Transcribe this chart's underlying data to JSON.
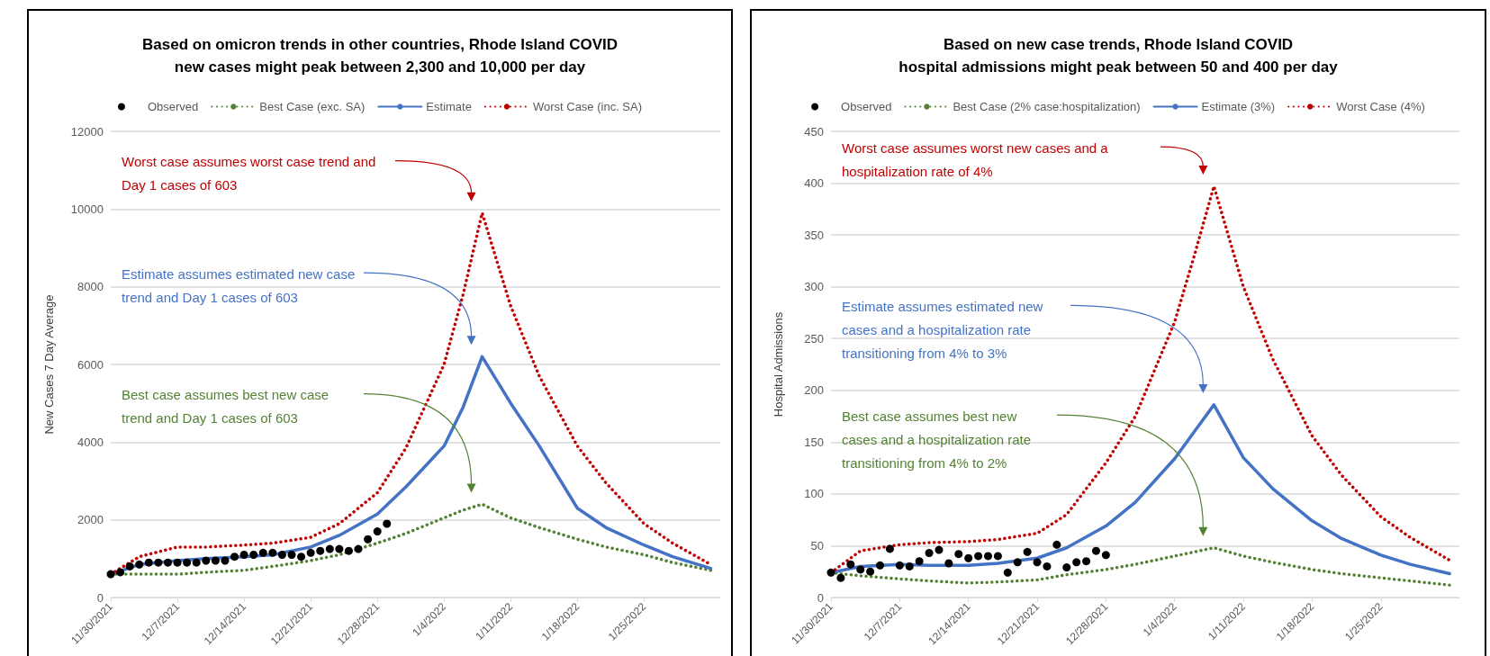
{
  "chart_data": [
    {
      "type": "line",
      "title": "Based on omicron trends in other countries, Rhode Island COVID\nnew cases might peak between 2,300 and 10,000 per day",
      "ylabel": "New Cases 7 Day Average",
      "ylim": [
        0,
        12000
      ],
      "yticks": [
        0,
        2000,
        4000,
        6000,
        8000,
        10000,
        12000
      ],
      "xlim": [
        "2021-11-30",
        "2022-02-02"
      ],
      "xticks": [
        {
          "value": "2021-11-30",
          "label": "11/30/2021"
        },
        {
          "value": "2021-12-07",
          "label": "12/7/2021"
        },
        {
          "value": "2021-12-14",
          "label": "12/14/2021"
        },
        {
          "value": "2021-12-21",
          "label": "12/21/2021"
        },
        {
          "value": "2021-12-28",
          "label": "12/28/2021"
        },
        {
          "value": "2022-01-04",
          "label": "1/4/2022"
        },
        {
          "value": "2022-01-11",
          "label": "1/11/2022"
        },
        {
          "value": "2022-01-18",
          "label": "1/18/2022"
        },
        {
          "value": "2022-01-25",
          "label": "1/25/2022"
        }
      ],
      "grid": "y",
      "legend": "top",
      "series": [
        {
          "name": "Observed",
          "type": "scatter",
          "marker": "circle",
          "color": "#000000",
          "x": [
            "2021-11-30",
            "2021-12-01",
            "2021-12-02",
            "2021-12-03",
            "2021-12-04",
            "2021-12-05",
            "2021-12-06",
            "2021-12-07",
            "2021-12-08",
            "2021-12-09",
            "2021-12-10",
            "2021-12-11",
            "2021-12-12",
            "2021-12-13",
            "2021-12-14",
            "2021-12-15",
            "2021-12-16",
            "2021-12-17",
            "2021-12-18",
            "2021-12-19",
            "2021-12-20",
            "2021-12-21",
            "2021-12-22",
            "2021-12-23",
            "2021-12-24",
            "2021-12-25",
            "2021-12-26",
            "2021-12-27",
            "2021-12-28",
            "2021-12-29"
          ],
          "values": [
            600,
            650,
            800,
            850,
            900,
            900,
            900,
            900,
            900,
            900,
            950,
            950,
            950,
            1050,
            1100,
            1100,
            1150,
            1150,
            1100,
            1100,
            1050,
            1150,
            1200,
            1250,
            1250,
            1200,
            1250,
            1500,
            1700,
            1900
          ]
        },
        {
          "name": "Best Case (exc. SA)",
          "type": "line",
          "marker": "none",
          "line_style": "dotted",
          "color": "#548235",
          "x": [
            "2021-11-30",
            "2021-12-03",
            "2021-12-07",
            "2021-12-10",
            "2021-12-14",
            "2021-12-17",
            "2021-12-21",
            "2021-12-24",
            "2021-12-28",
            "2021-12-31",
            "2022-01-04",
            "2022-01-06",
            "2022-01-08",
            "2022-01-11",
            "2022-01-14",
            "2022-01-18",
            "2022-01-21",
            "2022-01-25",
            "2022-01-28",
            "2022-02-01"
          ],
          "values": [
            600,
            600,
            600,
            650,
            700,
            800,
            950,
            1100,
            1400,
            1650,
            2050,
            2250,
            2400,
            2050,
            1800,
            1500,
            1300,
            1100,
            900,
            700
          ]
        },
        {
          "name": "Estimate",
          "type": "line",
          "marker": "none",
          "line_style": "solid",
          "color": "#4472c4",
          "x": [
            "2021-11-30",
            "2021-12-03",
            "2021-12-07",
            "2021-12-10",
            "2021-12-14",
            "2021-12-17",
            "2021-12-21",
            "2021-12-24",
            "2021-12-28",
            "2021-12-31",
            "2022-01-04",
            "2022-01-06",
            "2022-01-08",
            "2022-01-11",
            "2022-01-14",
            "2022-01-18",
            "2022-01-21",
            "2022-01-25",
            "2022-01-28",
            "2022-02-01"
          ],
          "values": [
            600,
            850,
            950,
            1000,
            1050,
            1100,
            1300,
            1600,
            2150,
            2850,
            3900,
            4900,
            6200,
            5000,
            3900,
            2300,
            1800,
            1350,
            1050,
            750
          ]
        },
        {
          "name": "Worst Case (inc. SA)",
          "type": "line",
          "marker": "none",
          "line_style": "dotted",
          "color": "#c00000",
          "x": [
            "2021-11-30",
            "2021-12-03",
            "2021-12-07",
            "2021-12-10",
            "2021-12-14",
            "2021-12-17",
            "2021-12-21",
            "2021-12-24",
            "2021-12-28",
            "2021-12-31",
            "2022-01-04",
            "2022-01-06",
            "2022-01-08",
            "2022-01-11",
            "2022-01-14",
            "2022-01-18",
            "2022-01-21",
            "2022-01-25",
            "2022-01-28",
            "2022-02-01"
          ],
          "values": [
            600,
            1050,
            1300,
            1300,
            1350,
            1400,
            1550,
            1900,
            2700,
            3850,
            6000,
            7800,
            9900,
            7500,
            5700,
            3900,
            2950,
            1900,
            1400,
            850
          ]
        }
      ],
      "annotations": [
        "Worst case assumes worst case trend and Day 1 cases of 603",
        "Estimate assumes estimated new case trend and Day 1 cases of 603",
        "Best case assumes best new case trend and Day 1 cases of 603"
      ]
    },
    {
      "type": "line",
      "title": "Based on new case trends, Rhode Island COVID\nhospital admissions might peak between 50 and 400 per day",
      "ylabel": "Hospital Admissions",
      "ylim": [
        0,
        450
      ],
      "yticks": [
        0,
        50,
        100,
        150,
        200,
        250,
        300,
        350,
        400,
        450
      ],
      "xlim": [
        "2021-11-30",
        "2022-02-02"
      ],
      "xticks": [
        {
          "value": "2021-11-30",
          "label": "11/30/2021"
        },
        {
          "value": "2021-12-07",
          "label": "12/7/2021"
        },
        {
          "value": "2021-12-14",
          "label": "12/14/2021"
        },
        {
          "value": "2021-12-21",
          "label": "12/21/2021"
        },
        {
          "value": "2021-12-28",
          "label": "12/28/2021"
        },
        {
          "value": "2022-01-04",
          "label": "1/4/2022"
        },
        {
          "value": "2022-01-11",
          "label": "1/11/2022"
        },
        {
          "value": "2022-01-18",
          "label": "1/18/2022"
        },
        {
          "value": "2022-01-25",
          "label": "1/25/2022"
        }
      ],
      "grid": "y",
      "legend": "top",
      "series": [
        {
          "name": "Observed",
          "type": "scatter",
          "marker": "circle",
          "color": "#000000",
          "x": [
            "2021-11-30",
            "2021-12-01",
            "2021-12-02",
            "2021-12-03",
            "2021-12-04",
            "2021-12-05",
            "2021-12-06",
            "2021-12-07",
            "2021-12-08",
            "2021-12-09",
            "2021-12-10",
            "2021-12-11",
            "2021-12-12",
            "2021-12-13",
            "2021-12-14",
            "2021-12-15",
            "2021-12-16",
            "2021-12-17",
            "2021-12-18",
            "2021-12-19",
            "2021-12-20",
            "2021-12-21",
            "2021-12-22",
            "2021-12-23",
            "2021-12-24",
            "2021-12-25",
            "2021-12-26",
            "2021-12-27",
            "2021-12-28"
          ],
          "values": [
            24,
            19,
            32,
            27,
            25,
            31,
            47,
            31,
            30,
            35,
            43,
            46,
            33,
            42,
            38,
            40,
            40,
            40,
            24,
            34,
            44,
            34,
            30,
            51,
            29,
            34,
            35,
            45,
            41
          ]
        },
        {
          "name": "Best Case (2% case:hospitalization)",
          "type": "line",
          "marker": "none",
          "line_style": "dotted",
          "color": "#548235",
          "x": [
            "2021-11-30",
            "2021-12-03",
            "2021-12-07",
            "2021-12-10",
            "2021-12-14",
            "2021-12-17",
            "2021-12-21",
            "2021-12-24",
            "2021-12-28",
            "2021-12-31",
            "2022-01-04",
            "2022-01-06",
            "2022-01-08",
            "2022-01-11",
            "2022-01-14",
            "2022-01-18",
            "2022-01-21",
            "2022-01-25",
            "2022-01-28",
            "2022-02-01"
          ],
          "values": [
            24,
            21,
            18,
            16,
            14,
            15,
            17,
            22,
            27,
            32,
            40,
            44,
            48,
            40,
            34,
            27,
            23,
            19,
            16,
            12
          ]
        },
        {
          "name": "Estimate (3%)",
          "type": "line",
          "marker": "none",
          "line_style": "solid",
          "color": "#4472c4",
          "x": [
            "2021-11-30",
            "2021-12-03",
            "2021-12-07",
            "2021-12-10",
            "2021-12-14",
            "2021-12-17",
            "2021-12-21",
            "2021-12-24",
            "2021-12-28",
            "2021-12-31",
            "2022-01-04",
            "2022-01-06",
            "2022-01-08",
            "2022-01-11",
            "2022-01-14",
            "2022-01-18",
            "2022-01-21",
            "2022-01-25",
            "2022-01-28",
            "2022-02-01"
          ],
          "values": [
            24,
            30,
            32,
            31,
            31,
            33,
            38,
            48,
            69,
            92,
            134,
            160,
            186,
            135,
            105,
            74,
            57,
            41,
            32,
            23
          ]
        },
        {
          "name": "Worst Case (4%)",
          "type": "line",
          "marker": "none",
          "line_style": "dotted",
          "color": "#c00000",
          "x": [
            "2021-11-30",
            "2021-12-03",
            "2021-12-07",
            "2021-12-10",
            "2021-12-14",
            "2021-12-17",
            "2021-12-21",
            "2021-12-24",
            "2021-12-28",
            "2021-12-31",
            "2022-01-04",
            "2022-01-06",
            "2022-01-08",
            "2022-01-11",
            "2022-01-14",
            "2022-01-18",
            "2022-01-21",
            "2022-01-25",
            "2022-01-28",
            "2022-02-01"
          ],
          "values": [
            24,
            45,
            51,
            53,
            54,
            56,
            62,
            80,
            130,
            175,
            266,
            330,
            397,
            300,
            230,
            156,
            118,
            78,
            58,
            36
          ]
        }
      ],
      "annotations": [
        "Worst case assumes worst new cases and a hospitalization rate of 4%",
        "Estimate assumes estimated new cases and a hospitalization rate transitioning from 4% to 3%",
        "Best case assumes best new cases and a hospitalization rate transitioning from 4% to 2%"
      ]
    }
  ]
}
